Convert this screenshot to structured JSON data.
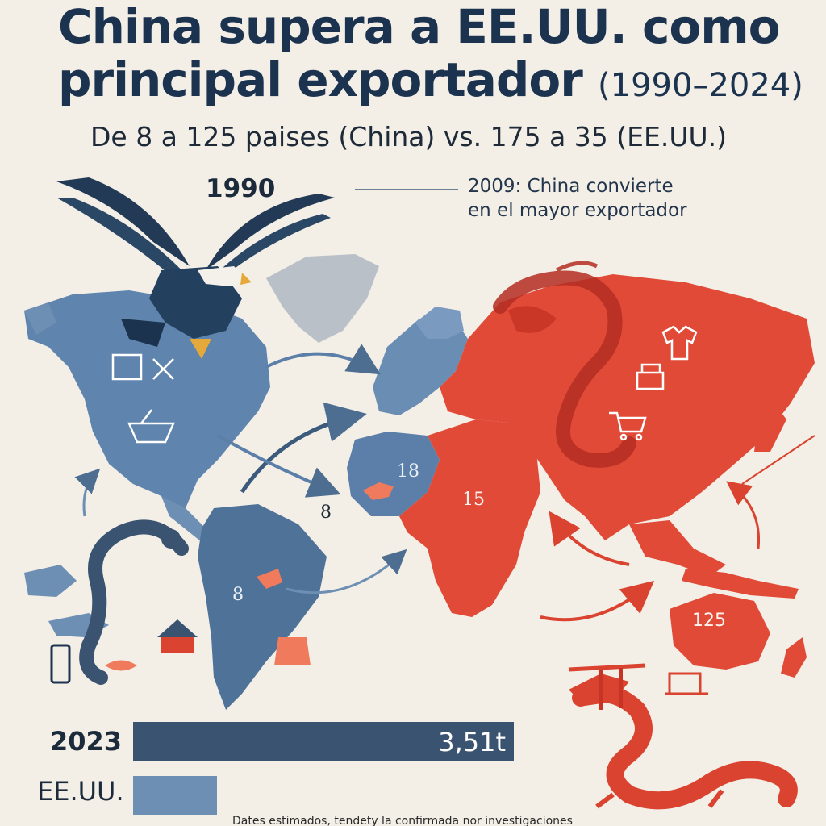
{
  "header": {
    "title_line1": "China supera a EE.UU. como",
    "title_line2": "principal exportador",
    "title_range": "(1990–2024)",
    "subtitle": "De 8 a 125 paises (China) vs. 175 a 35 (EE.UU.)"
  },
  "timeline": {
    "start_year": "1990",
    "callout_line1": "2009: China convierte",
    "callout_line2": "en el mayor exportador"
  },
  "map_labels": {
    "west_africa": "18",
    "africa": "15",
    "senegal": "8",
    "south_america": "8",
    "australia": "125"
  },
  "bars": {
    "year_label": "2023",
    "china_value": "3,51t",
    "china_fraction": 1.0,
    "us_label": "EE.UU.",
    "us_fraction": 0.22
  },
  "footnote": "Dates estimados, tendety la confirmada nor investigaciones",
  "colors": {
    "background": "#f3efe7",
    "us_blue": "#5f84ad",
    "china_red": "#e04a37",
    "navy": "#1c3350"
  },
  "icons": [
    "eagle-icon",
    "dragon-icon",
    "serpent-icon",
    "shirt-icon",
    "sewing-machine-icon",
    "cart-icon",
    "ship-icon",
    "phone-icon",
    "house-icon"
  ]
}
